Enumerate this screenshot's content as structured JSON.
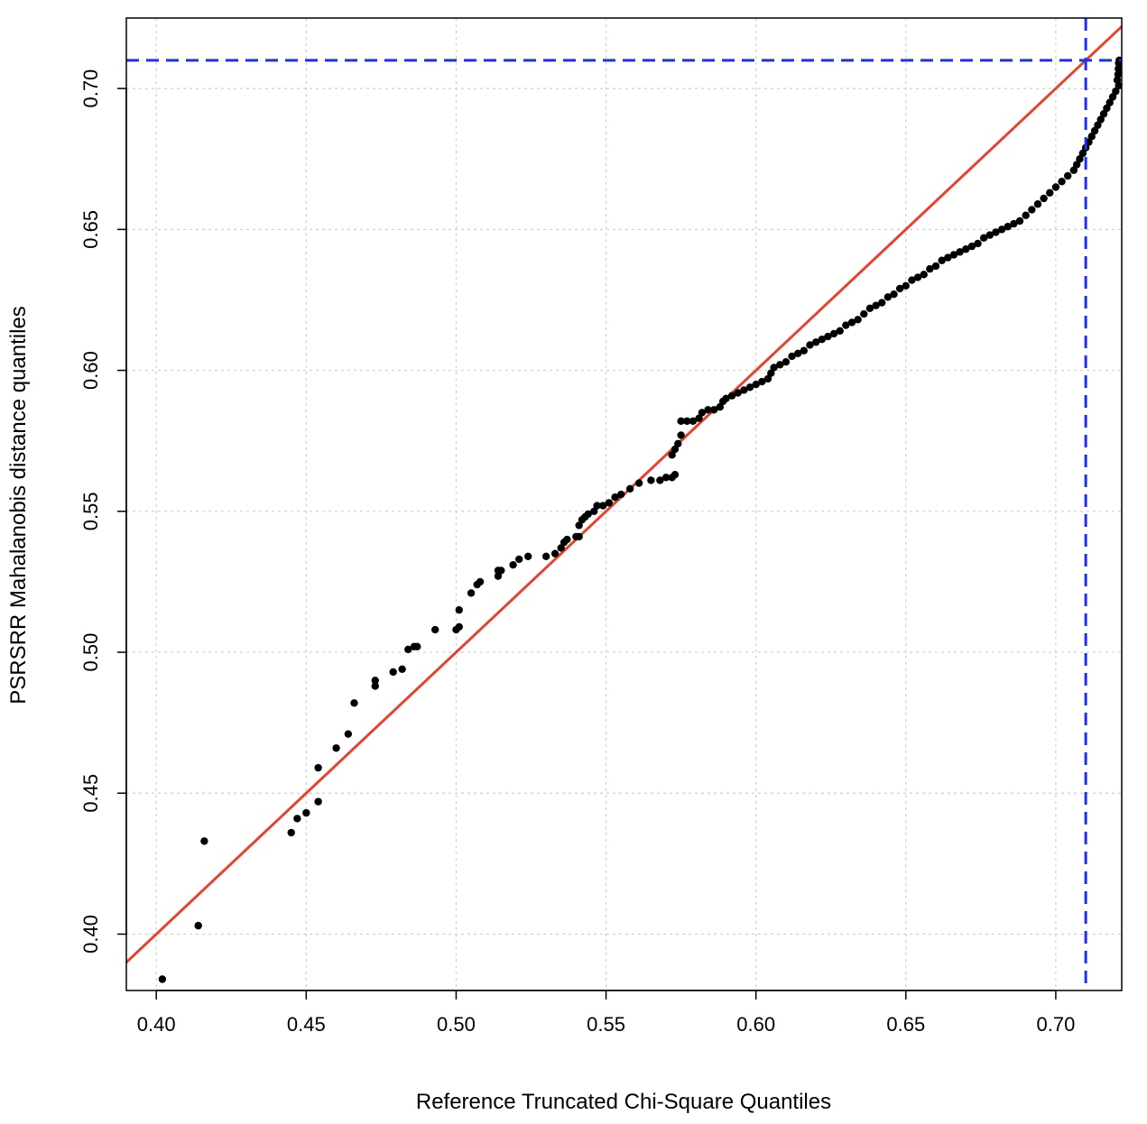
{
  "chart_data": {
    "type": "scatter",
    "title": "",
    "xlabel": "Reference Truncated Chi-Square Quantiles",
    "ylabel": "PSRSRR Mahalanobis distance quantiles",
    "xlim": [
      0.39,
      0.722
    ],
    "ylim": [
      0.38,
      0.725
    ],
    "x_ticks": [
      0.4,
      0.45,
      0.5,
      0.55,
      0.6,
      0.65,
      0.7
    ],
    "y_ticks": [
      0.4,
      0.45,
      0.5,
      0.55,
      0.6,
      0.65,
      0.7
    ],
    "x_tick_labels": [
      "0.40",
      "0.45",
      "0.50",
      "0.55",
      "0.60",
      "0.65",
      "0.70"
    ],
    "y_tick_labels": [
      "0.40",
      "0.45",
      "0.50",
      "0.55",
      "0.60",
      "0.65",
      "0.70"
    ],
    "grid": true,
    "reference_line": {
      "slope": 1,
      "intercept": 0,
      "color": "#e8432a"
    },
    "cutoff_lines": {
      "x": 0.71,
      "y": 0.71,
      "color": "#1f2ef0",
      "style": "dashed"
    },
    "point_color": "#000000",
    "series": [
      {
        "points": [
          [
            0.402,
            0.384
          ],
          [
            0.414,
            0.403
          ],
          [
            0.416,
            0.433
          ],
          [
            0.445,
            0.436
          ],
          [
            0.447,
            0.441
          ],
          [
            0.45,
            0.443
          ],
          [
            0.454,
            0.447
          ],
          [
            0.454,
            0.459
          ],
          [
            0.46,
            0.466
          ],
          [
            0.464,
            0.471
          ],
          [
            0.466,
            0.482
          ],
          [
            0.473,
            0.488
          ],
          [
            0.473,
            0.49
          ],
          [
            0.479,
            0.493
          ],
          [
            0.482,
            0.494
          ],
          [
            0.484,
            0.501
          ],
          [
            0.486,
            0.502
          ],
          [
            0.487,
            0.502
          ],
          [
            0.493,
            0.508
          ],
          [
            0.5,
            0.508
          ],
          [
            0.501,
            0.509
          ],
          [
            0.501,
            0.515
          ],
          [
            0.505,
            0.521
          ],
          [
            0.507,
            0.524
          ],
          [
            0.508,
            0.525
          ],
          [
            0.514,
            0.527
          ],
          [
            0.514,
            0.529
          ],
          [
            0.515,
            0.529
          ],
          [
            0.519,
            0.531
          ],
          [
            0.521,
            0.533
          ],
          [
            0.524,
            0.534
          ],
          [
            0.53,
            0.534
          ],
          [
            0.533,
            0.535
          ],
          [
            0.535,
            0.537
          ],
          [
            0.536,
            0.539
          ],
          [
            0.537,
            0.54
          ],
          [
            0.54,
            0.541
          ],
          [
            0.541,
            0.541
          ],
          [
            0.541,
            0.545
          ],
          [
            0.542,
            0.547
          ],
          [
            0.543,
            0.548
          ],
          [
            0.544,
            0.549
          ],
          [
            0.546,
            0.55
          ],
          [
            0.547,
            0.552
          ],
          [
            0.549,
            0.552
          ],
          [
            0.551,
            0.553
          ],
          [
            0.553,
            0.555
          ],
          [
            0.555,
            0.556
          ],
          [
            0.558,
            0.558
          ],
          [
            0.561,
            0.56
          ],
          [
            0.565,
            0.561
          ],
          [
            0.568,
            0.561
          ],
          [
            0.57,
            0.562
          ],
          [
            0.572,
            0.562
          ],
          [
            0.573,
            0.563
          ],
          [
            0.572,
            0.57
          ],
          [
            0.573,
            0.572
          ],
          [
            0.574,
            0.574
          ],
          [
            0.575,
            0.577
          ],
          [
            0.575,
            0.582
          ],
          [
            0.577,
            0.582
          ],
          [
            0.579,
            0.582
          ],
          [
            0.581,
            0.583
          ],
          [
            0.582,
            0.585
          ],
          [
            0.584,
            0.586
          ],
          [
            0.586,
            0.586
          ],
          [
            0.588,
            0.587
          ],
          [
            0.589,
            0.589
          ],
          [
            0.59,
            0.59
          ],
          [
            0.592,
            0.591
          ],
          [
            0.594,
            0.592
          ],
          [
            0.596,
            0.593
          ],
          [
            0.598,
            0.594
          ],
          [
            0.6,
            0.595
          ],
          [
            0.602,
            0.596
          ],
          [
            0.604,
            0.597
          ],
          [
            0.605,
            0.599
          ],
          [
            0.606,
            0.601
          ],
          [
            0.608,
            0.602
          ],
          [
            0.61,
            0.603
          ],
          [
            0.612,
            0.605
          ],
          [
            0.614,
            0.606
          ],
          [
            0.616,
            0.607
          ],
          [
            0.618,
            0.609
          ],
          [
            0.62,
            0.61
          ],
          [
            0.622,
            0.611
          ],
          [
            0.624,
            0.612
          ],
          [
            0.626,
            0.613
          ],
          [
            0.628,
            0.614
          ],
          [
            0.63,
            0.616
          ],
          [
            0.632,
            0.617
          ],
          [
            0.634,
            0.618
          ],
          [
            0.636,
            0.62
          ],
          [
            0.638,
            0.622
          ],
          [
            0.64,
            0.623
          ],
          [
            0.642,
            0.624
          ],
          [
            0.644,
            0.626
          ],
          [
            0.646,
            0.627
          ],
          [
            0.648,
            0.629
          ],
          [
            0.65,
            0.63
          ],
          [
            0.652,
            0.632
          ],
          [
            0.654,
            0.633
          ],
          [
            0.656,
            0.634
          ],
          [
            0.658,
            0.636
          ],
          [
            0.66,
            0.637
          ],
          [
            0.662,
            0.639
          ],
          [
            0.664,
            0.64
          ],
          [
            0.666,
            0.641
          ],
          [
            0.668,
            0.642
          ],
          [
            0.67,
            0.643
          ],
          [
            0.672,
            0.644
          ],
          [
            0.674,
            0.645
          ],
          [
            0.676,
            0.647
          ],
          [
            0.678,
            0.648
          ],
          [
            0.68,
            0.649
          ],
          [
            0.682,
            0.65
          ],
          [
            0.684,
            0.651
          ],
          [
            0.686,
            0.652
          ],
          [
            0.688,
            0.653
          ],
          [
            0.69,
            0.655
          ],
          [
            0.692,
            0.657
          ],
          [
            0.694,
            0.659
          ],
          [
            0.696,
            0.661
          ],
          [
            0.698,
            0.663
          ],
          [
            0.7,
            0.665
          ],
          [
            0.702,
            0.667
          ],
          [
            0.704,
            0.669
          ],
          [
            0.706,
            0.671
          ],
          [
            0.707,
            0.673
          ],
          [
            0.708,
            0.675
          ],
          [
            0.709,
            0.677
          ],
          [
            0.71,
            0.679
          ],
          [
            0.711,
            0.681
          ],
          [
            0.712,
            0.683
          ],
          [
            0.713,
            0.685
          ],
          [
            0.714,
            0.687
          ],
          [
            0.715,
            0.689
          ],
          [
            0.716,
            0.691
          ],
          [
            0.717,
            0.693
          ],
          [
            0.718,
            0.695
          ],
          [
            0.719,
            0.697
          ],
          [
            0.72,
            0.699
          ],
          [
            0.721,
            0.701
          ],
          [
            0.7205,
            0.703
          ],
          [
            0.7208,
            0.705
          ],
          [
            0.7209,
            0.707
          ],
          [
            0.721,
            0.709
          ],
          [
            0.7212,
            0.71
          ]
        ]
      }
    ]
  }
}
